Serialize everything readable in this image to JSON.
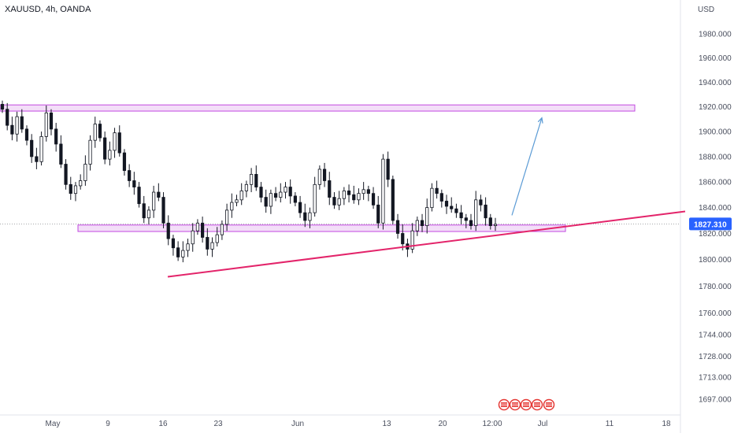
{
  "header": {
    "symbol_title": "XAUUSD, 4h, OANDA",
    "currency": "USD"
  },
  "colors": {
    "background": "#ffffff",
    "candle": "#131722",
    "zone_fill": "#f1d8f7",
    "zone_border": "#c248e0",
    "trendline": "#e3246a",
    "projection_arrow": "#5b9bd5",
    "price_badge": "#2962ff",
    "axis_text": "#4a4f5e",
    "event_flag": "#e53935"
  },
  "chart_data": {
    "type": "candlestick",
    "symbol": "XAUUSD",
    "timeframe": "4h",
    "broker": "OANDA",
    "price_axis": {
      "ticks": [
        "1980.000",
        "1960.000",
        "1940.000",
        "1920.000",
        "1900.000",
        "1880.000",
        "1860.000",
        "1840.000",
        "1820.000",
        "1800.000",
        "1780.000",
        "1760.000",
        "1744.000",
        "1728.000",
        "1713.000",
        "1697.000"
      ],
      "scale": "log"
    },
    "time_axis": {
      "ticks": [
        "May",
        "9",
        "16",
        "23",
        "Jun",
        "13",
        "20",
        "12:00",
        "Jul",
        "11",
        "18"
      ]
    },
    "last_price": "1827.310",
    "closes": [
      1918,
      1905,
      1898,
      1912,
      1902,
      1893,
      1880,
      1876,
      1896,
      1915,
      1902,
      1890,
      1874,
      1858,
      1851,
      1857,
      1861,
      1874,
      1893,
      1906,
      1895,
      1878,
      1885,
      1899,
      1883,
      1869,
      1861,
      1856,
      1843,
      1832,
      1838,
      1852,
      1848,
      1828,
      1816,
      1809,
      1802,
      1807,
      1812,
      1822,
      1828,
      1817,
      1808,
      1813,
      1819,
      1827,
      1838,
      1844,
      1846,
      1853,
      1858,
      1866,
      1856,
      1848,
      1841,
      1851,
      1848,
      1852,
      1856,
      1849,
      1844,
      1836,
      1830,
      1836,
      1858,
      1870,
      1861,
      1848,
      1842,
      1847,
      1853,
      1850,
      1846,
      1851,
      1854,
      1851,
      1842,
      1828,
      1878,
      1862,
      1830,
      1820,
      1812,
      1808,
      1822,
      1830,
      1826,
      1840,
      1855,
      1851,
      1845,
      1841,
      1839,
      1836,
      1832,
      1830,
      1826,
      1846,
      1842,
      1832,
      1826,
      1827
    ],
    "drawings": {
      "resistance_zone": {
        "low": 1916.5,
        "high": 1921.5
      },
      "support_zone": {
        "low": 1821.5,
        "high": 1826.5
      },
      "trendline": {
        "from_price": 1787,
        "to_price": 1837
      },
      "projection_arrow": {
        "from_price": 1834,
        "to_price": 1911
      }
    }
  }
}
